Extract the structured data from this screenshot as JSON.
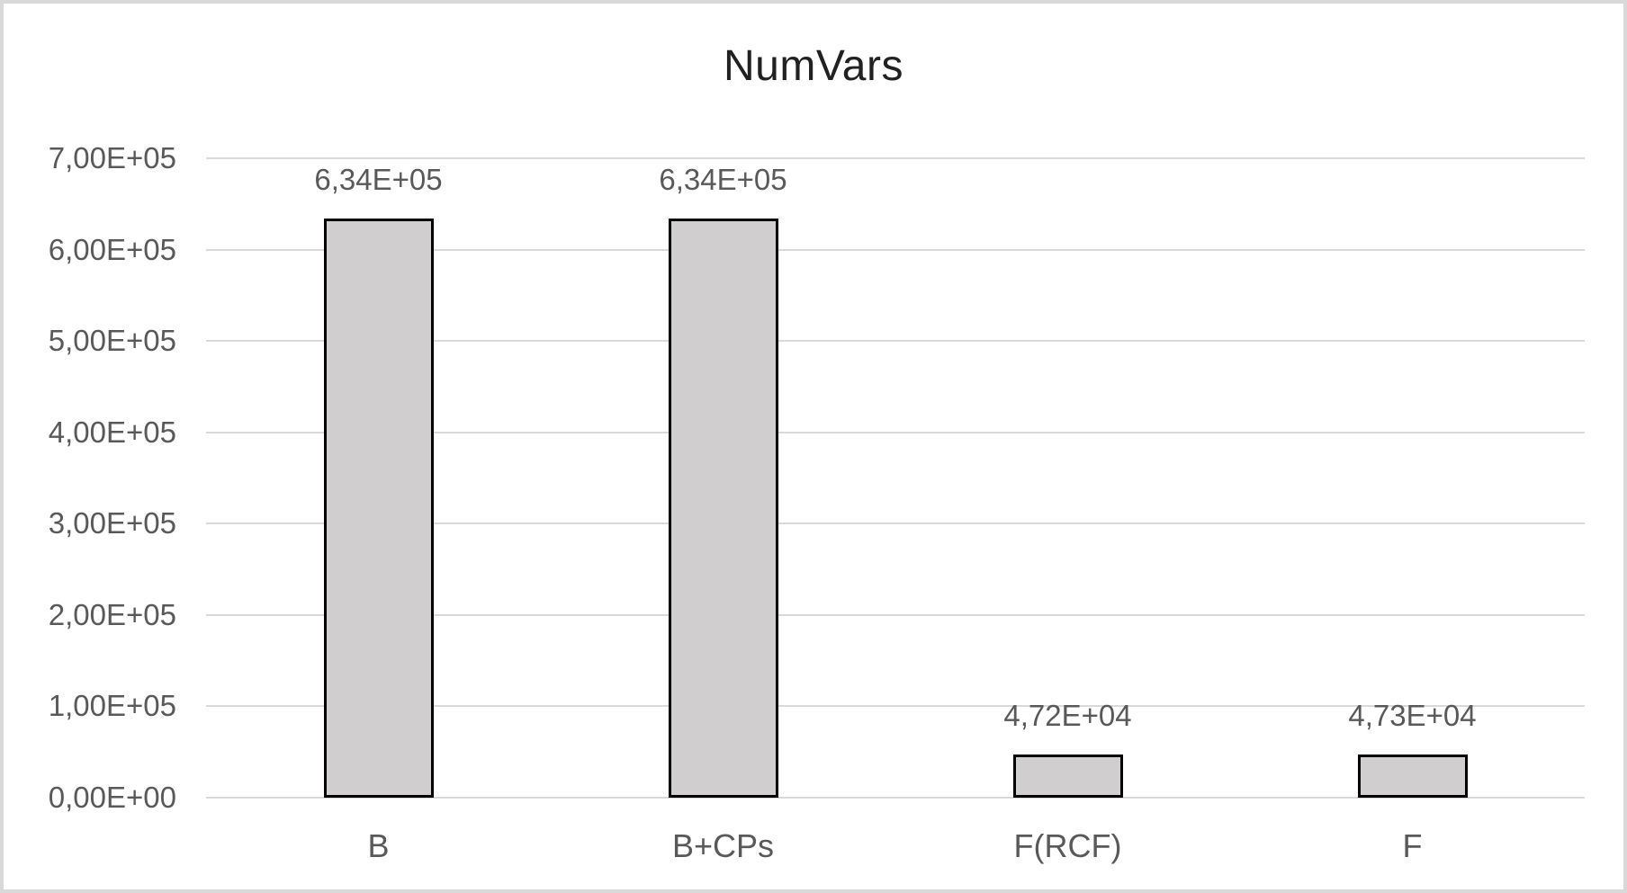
{
  "chart_data": {
    "type": "bar",
    "title": "NumVars",
    "categories": [
      "B",
      "B+CPs",
      "F(RCF)",
      "F"
    ],
    "values": [
      634000,
      634000,
      47200,
      47300
    ],
    "value_labels": [
      "6,34E+05",
      "6,34E+05",
      "4,72E+04",
      "4,73E+04"
    ],
    "xlabel": "",
    "ylabel": "",
    "ylim": [
      0,
      700000
    ],
    "y_ticks": {
      "values": [
        700000,
        600000,
        500000,
        400000,
        300000,
        200000,
        100000,
        0
      ],
      "labels": [
        "7,00E+05",
        "6,00E+05",
        "5,00E+05",
        "4,00E+05",
        "3,00E+05",
        "2,00E+05",
        "1,00E+05",
        "0,00E+00"
      ]
    },
    "grid": true,
    "legend": false,
    "colors": {
      "bar_fill": "#d0cece",
      "bar_border": "#000000",
      "gridline": "#d9d9d9",
      "tick_text": "#595959",
      "title_text": "#212121",
      "chart_border": "#d9d9d9",
      "background": "#ffffff"
    }
  }
}
